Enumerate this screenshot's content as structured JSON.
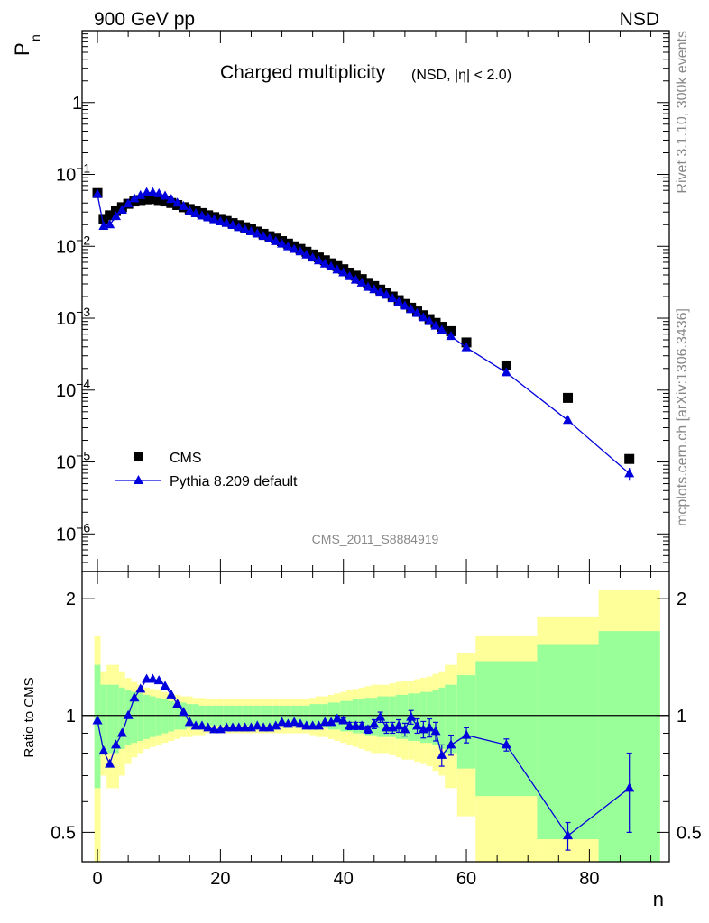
{
  "header": {
    "left": "900 GeV pp",
    "right": "NSD"
  },
  "side_text": {
    "rivet": "Rivet 3.1.10,  300k events",
    "mcplots": "mcplots.cern.ch [arXiv:1306.3436]"
  },
  "watermark": "CMS_2011_S8884919",
  "chart_data": [
    {
      "type": "scatter",
      "panel": "main",
      "title": "Charged multiplicity",
      "subtitle": "(NSD, |η| < 2.0)",
      "ylabel": "P",
      "ylabel_sub": "n",
      "yscale": "log",
      "ylim": [
        3e-07,
        10
      ],
      "xlim": [
        -2.5,
        93
      ],
      "y_ticks": [
        {
          "exp": -6,
          "label": "10",
          "sup": "−6"
        },
        {
          "exp": -5,
          "label": "10",
          "sup": "−5"
        },
        {
          "exp": -4,
          "label": "10",
          "sup": "−4"
        },
        {
          "exp": -3,
          "label": "10",
          "sup": "−3"
        },
        {
          "exp": -2,
          "label": "10",
          "sup": "−2"
        },
        {
          "exp": -1,
          "label": "10",
          "sup": "−1"
        },
        {
          "exp": 0,
          "label": "1",
          "sup": ""
        }
      ],
      "legend": [
        {
          "name": "CMS",
          "marker": "square",
          "color": "#000000"
        },
        {
          "name": "Pythia 8.209 default",
          "marker": "triangle",
          "color": "#0000dd"
        }
      ],
      "series": [
        {
          "name": "CMS",
          "x": [
            0,
            1,
            2,
            3,
            4,
            5,
            6,
            7,
            8,
            9,
            10,
            11,
            12,
            13,
            14,
            15,
            16,
            17,
            18,
            19,
            20,
            21,
            22,
            23,
            24,
            25,
            26,
            27,
            28,
            29,
            30,
            31,
            32,
            33,
            34,
            35,
            36,
            37,
            38,
            39,
            40,
            41,
            42,
            43,
            44,
            45,
            46,
            47,
            48,
            49,
            50,
            51,
            52,
            53,
            54,
            55,
            56,
            57.5,
            60,
            66.5,
            76.5,
            86.5
          ],
          "y": [
            0.055,
            0.024,
            0.027,
            0.031,
            0.035,
            0.039,
            0.042,
            0.044,
            0.045,
            0.0455,
            0.044,
            0.042,
            0.04,
            0.0375,
            0.035,
            0.033,
            0.031,
            0.029,
            0.027,
            0.0255,
            0.024,
            0.0225,
            0.021,
            0.0197,
            0.0184,
            0.0172,
            0.016,
            0.0149,
            0.0138,
            0.0128,
            0.0118,
            0.0109,
            0.01,
            0.0092,
            0.0084,
            0.0077,
            0.007,
            0.0064,
            0.0058,
            0.0053,
            0.0048,
            0.0043,
            0.0039,
            0.0035,
            0.0031,
            0.0028,
            0.0025,
            0.00225,
            0.002,
            0.00178,
            0.00158,
            0.0014,
            0.00124,
            0.0011,
            0.00097,
            0.00086,
            0.00076,
            0.00066,
            0.00046,
            0.00022,
            7.8e-05,
            1.1e-05
          ]
        },
        {
          "name": "Pythia 8.209 default",
          "x": [
            0,
            1,
            2,
            3,
            4,
            5,
            6,
            7,
            8,
            9,
            10,
            11,
            12,
            13,
            14,
            15,
            16,
            17,
            18,
            19,
            20,
            21,
            22,
            23,
            24,
            25,
            26,
            27,
            28,
            29,
            30,
            31,
            32,
            33,
            34,
            35,
            36,
            37,
            38,
            39,
            40,
            41,
            42,
            43,
            44,
            45,
            46,
            47,
            48,
            49,
            50,
            51,
            52,
            53,
            54,
            55,
            56,
            57.5,
            60,
            66.5,
            76.5,
            86.5
          ],
          "y": [
            0.053,
            0.019,
            0.02,
            0.026,
            0.032,
            0.039,
            0.046,
            0.051,
            0.056,
            0.056,
            0.054,
            0.05,
            0.045,
            0.04,
            0.036,
            0.031,
            0.0285,
            0.0265,
            0.025,
            0.0235,
            0.022,
            0.0209,
            0.0196,
            0.0183,
            0.017,
            0.016,
            0.0149,
            0.0138,
            0.0128,
            0.0117,
            0.0108,
            0.0099,
            0.0091,
            0.0084,
            0.0076,
            0.0069,
            0.0063,
            0.0057,
            0.0052,
            0.0047,
            0.0043,
            0.0038,
            0.0034,
            0.0031,
            0.0027,
            0.0025,
            0.0023,
            0.0021,
            0.00188,
            0.00167,
            0.00148,
            0.00132,
            0.00117,
            0.00102,
            0.0009,
            0.00078,
            0.00068,
            0.00056,
            0.00039,
            0.000175,
            3.8e-05,
            6.9e-06
          ],
          "err": [
            0,
            0,
            0,
            0,
            0,
            0,
            0,
            0,
            0,
            0,
            0,
            0,
            0,
            0,
            0,
            0,
            0,
            0,
            0,
            0,
            0,
            0,
            0,
            0,
            0,
            0,
            0,
            0,
            0,
            0,
            0,
            0,
            0,
            0,
            0,
            0,
            0,
            0,
            0,
            0,
            0,
            0,
            0,
            0,
            0,
            0,
            0,
            0,
            0,
            0,
            0,
            0,
            0,
            0,
            0,
            0,
            0,
            0,
            0,
            0,
            0,
            1.4e-06
          ]
        }
      ]
    },
    {
      "type": "line",
      "panel": "ratio",
      "ylabel": "Ratio to CMS",
      "xlabel": "n",
      "yscale": "log",
      "ylim": [
        0.42,
        2.35
      ],
      "xlim": [
        -2.5,
        93
      ],
      "x_ticks": [
        0,
        20,
        40,
        60,
        80
      ],
      "y_ticks": [
        {
          "v": 0.5,
          "label": "0.5"
        },
        {
          "v": 1,
          "label": "1"
        },
        {
          "v": 2,
          "label": "2"
        }
      ],
      "bands": {
        "edges": [
          -0.5,
          0.5,
          1.5,
          2.5,
          3.5,
          4.5,
          5.5,
          6.5,
          7.5,
          8.5,
          9.5,
          10.5,
          11.5,
          12.5,
          13.5,
          14.5,
          15.5,
          16.5,
          17.5,
          18.5,
          19.5,
          20.5,
          21.5,
          22.5,
          23.5,
          24.5,
          25.5,
          26.5,
          27.5,
          28.5,
          29.5,
          30.5,
          31.5,
          32.5,
          33.5,
          34.5,
          35.5,
          36.5,
          37.5,
          38.5,
          39.5,
          40.5,
          41.5,
          42.5,
          43.5,
          44.5,
          45.5,
          46.5,
          47.5,
          48.5,
          49.5,
          50.5,
          51.5,
          52.5,
          53.5,
          54.5,
          55.5,
          56.5,
          58.5,
          61.5,
          71.5,
          81.5,
          91.5
        ],
        "yellow_half": [
          0.6,
          0.3,
          0.35,
          0.35,
          0.3,
          0.25,
          0.22,
          0.2,
          0.18,
          0.17,
          0.16,
          0.15,
          0.14,
          0.13,
          0.12,
          0.12,
          0.11,
          0.11,
          0.1,
          0.1,
          0.1,
          0.1,
          0.1,
          0.1,
          0.1,
          0.1,
          0.1,
          0.1,
          0.1,
          0.1,
          0.1,
          0.1,
          0.1,
          0.1,
          0.1,
          0.11,
          0.12,
          0.12,
          0.13,
          0.14,
          0.15,
          0.16,
          0.17,
          0.18,
          0.19,
          0.2,
          0.2,
          0.2,
          0.21,
          0.22,
          0.23,
          0.23,
          0.24,
          0.25,
          0.26,
          0.28,
          0.3,
          0.35,
          0.45,
          0.6,
          0.8,
          1.1
        ],
        "green_half": [
          0.35,
          0.2,
          0.2,
          0.2,
          0.18,
          0.16,
          0.15,
          0.14,
          0.13,
          0.12,
          0.11,
          0.1,
          0.09,
          0.08,
          0.08,
          0.07,
          0.07,
          0.06,
          0.06,
          0.06,
          0.06,
          0.06,
          0.06,
          0.06,
          0.06,
          0.06,
          0.06,
          0.06,
          0.06,
          0.06,
          0.06,
          0.06,
          0.06,
          0.06,
          0.06,
          0.07,
          0.07,
          0.07,
          0.08,
          0.08,
          0.09,
          0.09,
          0.1,
          0.1,
          0.11,
          0.11,
          0.12,
          0.12,
          0.12,
          0.13,
          0.13,
          0.14,
          0.14,
          0.15,
          0.15,
          0.16,
          0.18,
          0.2,
          0.27,
          0.38,
          0.52,
          0.65
        ]
      },
      "series": [
        {
          "name": "Pythia 8.209 default / CMS",
          "x": [
            0,
            1,
            2,
            3,
            4,
            5,
            6,
            7,
            8,
            9,
            10,
            11,
            12,
            13,
            14,
            15,
            16,
            17,
            18,
            19,
            20,
            21,
            22,
            23,
            24,
            25,
            26,
            27,
            28,
            29,
            30,
            31,
            32,
            33,
            34,
            35,
            36,
            37,
            38,
            39,
            40,
            41,
            42,
            43,
            44,
            45,
            46,
            47,
            48,
            49,
            50,
            51,
            52,
            53,
            54,
            55,
            56,
            57.5,
            60,
            66.5,
            76.5,
            86.5
          ],
          "y": [
            0.97,
            0.81,
            0.75,
            0.84,
            0.9,
            1.0,
            1.11,
            1.17,
            1.24,
            1.24,
            1.23,
            1.19,
            1.13,
            1.07,
            1.02,
            0.96,
            0.94,
            0.94,
            0.93,
            0.92,
            0.92,
            0.93,
            0.93,
            0.93,
            0.93,
            0.93,
            0.94,
            0.93,
            0.93,
            0.94,
            0.96,
            0.95,
            0.96,
            0.95,
            0.94,
            0.94,
            0.94,
            0.96,
            0.96,
            0.98,
            0.97,
            0.94,
            0.94,
            0.94,
            0.92,
            0.95,
            0.99,
            0.93,
            0.93,
            0.94,
            0.92,
            0.99,
            0.94,
            0.92,
            0.93,
            0.91,
            0.79,
            0.84,
            0.89,
            0.84,
            0.49,
            0.65
          ],
          "err": [
            0,
            0,
            0,
            0,
            0,
            0,
            0,
            0,
            0,
            0,
            0,
            0,
            0,
            0,
            0,
            0,
            0,
            0,
            0,
            0,
            0,
            0,
            0,
            0,
            0,
            0,
            0,
            0,
            0,
            0,
            0,
            0,
            0,
            0,
            0,
            0,
            0,
            0,
            0,
            0.015,
            0.015,
            0.02,
            0.02,
            0.02,
            0.02,
            0.025,
            0.03,
            0.03,
            0.03,
            0.035,
            0.035,
            0.04,
            0.04,
            0.045,
            0.05,
            0.05,
            0.05,
            0.05,
            0.04,
            0.03,
            0.04,
            0.15
          ]
        }
      ]
    }
  ]
}
